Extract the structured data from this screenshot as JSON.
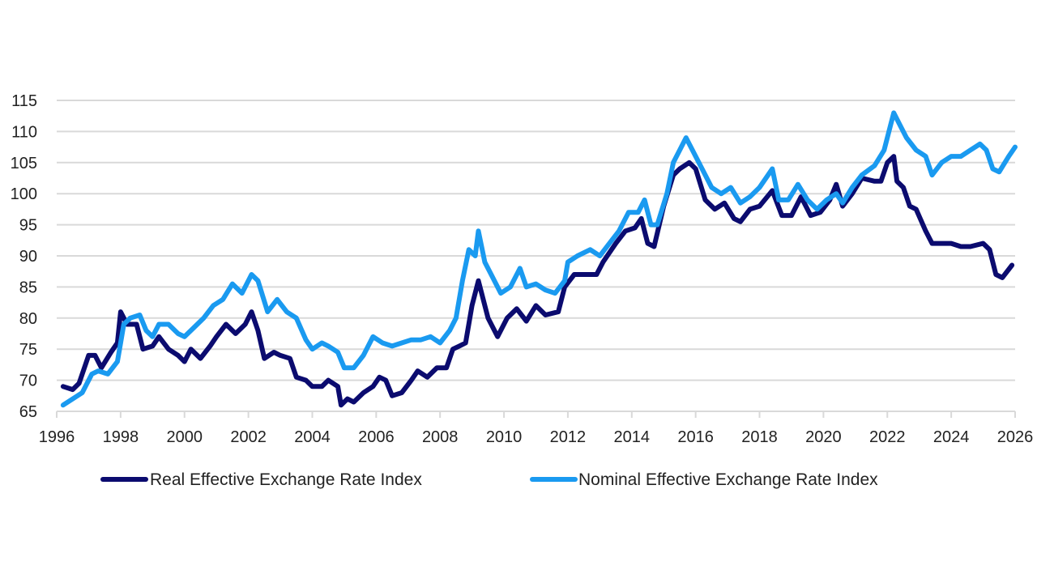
{
  "chart_data": {
    "type": "line",
    "title": "",
    "xlabel": "",
    "ylabel": "",
    "xlim": [
      1996,
      2026
    ],
    "ylim": [
      65,
      115
    ],
    "x_ticks": [
      "1996",
      "1998",
      "2000",
      "2002",
      "2004",
      "2006",
      "2008",
      "2010",
      "2012",
      "2014",
      "2016",
      "2018",
      "2020",
      "2022",
      "2024",
      "2026"
    ],
    "y_ticks": [
      "65",
      "70",
      "75",
      "80",
      "85",
      "90",
      "95",
      "100",
      "105",
      "110",
      "115"
    ],
    "grid": "horizontal",
    "legend_position": "bottom",
    "series": [
      {
        "name": "Real Effective Exchange Rate Index",
        "color": "#0b0b6f",
        "points": [
          [
            1996.2,
            69
          ],
          [
            1996.5,
            68.5
          ],
          [
            1996.7,
            69.5
          ],
          [
            1997,
            74
          ],
          [
            1997.2,
            74
          ],
          [
            1997.4,
            72
          ],
          [
            1997.7,
            74.5
          ],
          [
            1997.9,
            76
          ],
          [
            1998.0,
            81
          ],
          [
            1998.2,
            79
          ],
          [
            1998.5,
            79
          ],
          [
            1998.7,
            75
          ],
          [
            1999,
            75.5
          ],
          [
            1999.2,
            77
          ],
          [
            1999.5,
            75
          ],
          [
            1999.8,
            74
          ],
          [
            2000,
            73
          ],
          [
            2000.2,
            75
          ],
          [
            2000.5,
            73.5
          ],
          [
            2000.8,
            75.5
          ],
          [
            2001,
            77
          ],
          [
            2001.3,
            79
          ],
          [
            2001.6,
            77.5
          ],
          [
            2001.9,
            79
          ],
          [
            2002.1,
            81
          ],
          [
            2002.3,
            78
          ],
          [
            2002.5,
            73.5
          ],
          [
            2002.8,
            74.5
          ],
          [
            2003,
            74
          ],
          [
            2003.3,
            73.5
          ],
          [
            2003.5,
            70.5
          ],
          [
            2003.8,
            70
          ],
          [
            2004,
            69
          ],
          [
            2004.3,
            69
          ],
          [
            2004.5,
            70
          ],
          [
            2004.8,
            69
          ],
          [
            2004.9,
            66
          ],
          [
            2005.1,
            67
          ],
          [
            2005.3,
            66.5
          ],
          [
            2005.6,
            68
          ],
          [
            2005.9,
            69
          ],
          [
            2006.1,
            70.5
          ],
          [
            2006.3,
            70
          ],
          [
            2006.5,
            67.5
          ],
          [
            2006.8,
            68
          ],
          [
            2007.1,
            70
          ],
          [
            2007.3,
            71.5
          ],
          [
            2007.6,
            70.5
          ],
          [
            2007.9,
            72
          ],
          [
            2008.2,
            72
          ],
          [
            2008.4,
            75
          ],
          [
            2008.6,
            75.5
          ],
          [
            2008.8,
            76
          ],
          [
            2009.0,
            82
          ],
          [
            2009.2,
            86
          ],
          [
            2009.3,
            84
          ],
          [
            2009.5,
            80
          ],
          [
            2009.8,
            77
          ],
          [
            2010.1,
            80
          ],
          [
            2010.4,
            81.5
          ],
          [
            2010.7,
            79.5
          ],
          [
            2011,
            82
          ],
          [
            2011.3,
            80.5
          ],
          [
            2011.7,
            81
          ],
          [
            2011.9,
            85
          ],
          [
            2012.2,
            87
          ],
          [
            2012.6,
            87
          ],
          [
            2012.9,
            87
          ],
          [
            2013.1,
            89
          ],
          [
            2013.5,
            92
          ],
          [
            2013.8,
            94
          ],
          [
            2014.1,
            94.5
          ],
          [
            2014.3,
            96
          ],
          [
            2014.5,
            92
          ],
          [
            2014.7,
            91.5
          ],
          [
            2015,
            98
          ],
          [
            2015.3,
            103
          ],
          [
            2015.5,
            104
          ],
          [
            2015.8,
            105
          ],
          [
            2016,
            104
          ],
          [
            2016.3,
            99
          ],
          [
            2016.6,
            97.5
          ],
          [
            2016.9,
            98.5
          ],
          [
            2017.2,
            96
          ],
          [
            2017.4,
            95.5
          ],
          [
            2017.7,
            97.5
          ],
          [
            2018,
            98
          ],
          [
            2018.4,
            100.5
          ],
          [
            2018.7,
            96.5
          ],
          [
            2019,
            96.5
          ],
          [
            2019.3,
            99.5
          ],
          [
            2019.6,
            96.5
          ],
          [
            2019.9,
            97
          ],
          [
            2020.2,
            99
          ],
          [
            2020.4,
            101.5
          ],
          [
            2020.6,
            98
          ],
          [
            2020.9,
            100
          ],
          [
            2021.2,
            102.5
          ],
          [
            2021.6,
            102
          ],
          [
            2021.8,
            102
          ],
          [
            2022.0,
            105
          ],
          [
            2022.2,
            106
          ],
          [
            2022.3,
            102
          ],
          [
            2022.5,
            101
          ],
          [
            2022.7,
            98
          ],
          [
            2022.9,
            97.5
          ],
          [
            2023.2,
            94
          ],
          [
            2023.4,
            92
          ],
          [
            2023.7,
            92
          ],
          [
            2024.0,
            92
          ],
          [
            2024.3,
            91.5
          ],
          [
            2024.6,
            91.5
          ],
          [
            2025.0,
            92
          ],
          [
            2025.2,
            91
          ],
          [
            2025.4,
            87
          ],
          [
            2025.6,
            86.5
          ],
          [
            2025.9,
            88.5
          ]
        ]
      },
      {
        "name": "Nominal Effective Exchange Rate Index",
        "color": "#1a9af0",
        "points": [
          [
            1996.2,
            66
          ],
          [
            1996.5,
            67
          ],
          [
            1996.8,
            68
          ],
          [
            1997.1,
            71
          ],
          [
            1997.3,
            71.5
          ],
          [
            1997.6,
            71
          ],
          [
            1997.9,
            73
          ],
          [
            1998,
            76
          ],
          [
            1998.1,
            79
          ],
          [
            1998.3,
            80
          ],
          [
            1998.6,
            80.5
          ],
          [
            1998.8,
            78
          ],
          [
            1999,
            77
          ],
          [
            1999.2,
            79
          ],
          [
            1999.5,
            79
          ],
          [
            1999.8,
            77.5
          ],
          [
            2000,
            77
          ],
          [
            2000.3,
            78.5
          ],
          [
            2000.6,
            80
          ],
          [
            2000.9,
            82
          ],
          [
            2001.2,
            83
          ],
          [
            2001.5,
            85.5
          ],
          [
            2001.8,
            84
          ],
          [
            2002.1,
            87
          ],
          [
            2002.3,
            86
          ],
          [
            2002.6,
            81
          ],
          [
            2002.9,
            83
          ],
          [
            2003.2,
            81
          ],
          [
            2003.5,
            80
          ],
          [
            2003.8,
            76.5
          ],
          [
            2004,
            75
          ],
          [
            2004.3,
            76
          ],
          [
            2004.5,
            75.5
          ],
          [
            2004.8,
            74.5
          ],
          [
            2005,
            72
          ],
          [
            2005.3,
            72
          ],
          [
            2005.6,
            74
          ],
          [
            2005.9,
            77
          ],
          [
            2006.2,
            76
          ],
          [
            2006.5,
            75.5
          ],
          [
            2006.8,
            76
          ],
          [
            2007.1,
            76.5
          ],
          [
            2007.4,
            76.5
          ],
          [
            2007.7,
            77
          ],
          [
            2008,
            76
          ],
          [
            2008.3,
            78
          ],
          [
            2008.5,
            80
          ],
          [
            2008.7,
            86
          ],
          [
            2008.9,
            91
          ],
          [
            2009.1,
            90
          ],
          [
            2009.2,
            94
          ],
          [
            2009.4,
            89
          ],
          [
            2009.6,
            87
          ],
          [
            2009.9,
            84
          ],
          [
            2010.2,
            85
          ],
          [
            2010.5,
            88
          ],
          [
            2010.7,
            85
          ],
          [
            2011,
            85.5
          ],
          [
            2011.3,
            84.5
          ],
          [
            2011.6,
            84
          ],
          [
            2011.9,
            86
          ],
          [
            2012.0,
            89
          ],
          [
            2012.3,
            90
          ],
          [
            2012.7,
            91
          ],
          [
            2013,
            90
          ],
          [
            2013.3,
            92
          ],
          [
            2013.6,
            94
          ],
          [
            2013.9,
            97
          ],
          [
            2014.2,
            97
          ],
          [
            2014.4,
            99
          ],
          [
            2014.6,
            95
          ],
          [
            2014.8,
            95
          ],
          [
            2015.1,
            100
          ],
          [
            2015.3,
            105
          ],
          [
            2015.5,
            107
          ],
          [
            2015.7,
            109
          ],
          [
            2015.9,
            107
          ],
          [
            2016.2,
            104
          ],
          [
            2016.5,
            101
          ],
          [
            2016.8,
            100
          ],
          [
            2017.1,
            101
          ],
          [
            2017.4,
            98.5
          ],
          [
            2017.7,
            99.5
          ],
          [
            2018,
            101
          ],
          [
            2018.4,
            104
          ],
          [
            2018.6,
            99
          ],
          [
            2018.9,
            99
          ],
          [
            2019.2,
            101.5
          ],
          [
            2019.5,
            99
          ],
          [
            2019.8,
            97.5
          ],
          [
            2020.1,
            99
          ],
          [
            2020.4,
            100
          ],
          [
            2020.6,
            98.5
          ],
          [
            2020.9,
            101
          ],
          [
            2021.2,
            103
          ],
          [
            2021.6,
            104.5
          ],
          [
            2021.9,
            107
          ],
          [
            2022.1,
            111
          ],
          [
            2022.2,
            113
          ],
          [
            2022.4,
            111
          ],
          [
            2022.6,
            109
          ],
          [
            2022.9,
            107
          ],
          [
            2023.2,
            106
          ],
          [
            2023.4,
            103
          ],
          [
            2023.7,
            105
          ],
          [
            2024.0,
            106
          ],
          [
            2024.3,
            106
          ],
          [
            2024.6,
            107
          ],
          [
            2024.9,
            108
          ],
          [
            2025.1,
            107
          ],
          [
            2025.3,
            104
          ],
          [
            2025.5,
            103.5
          ],
          [
            2025.8,
            106
          ],
          [
            2026,
            107.5
          ]
        ]
      }
    ]
  }
}
